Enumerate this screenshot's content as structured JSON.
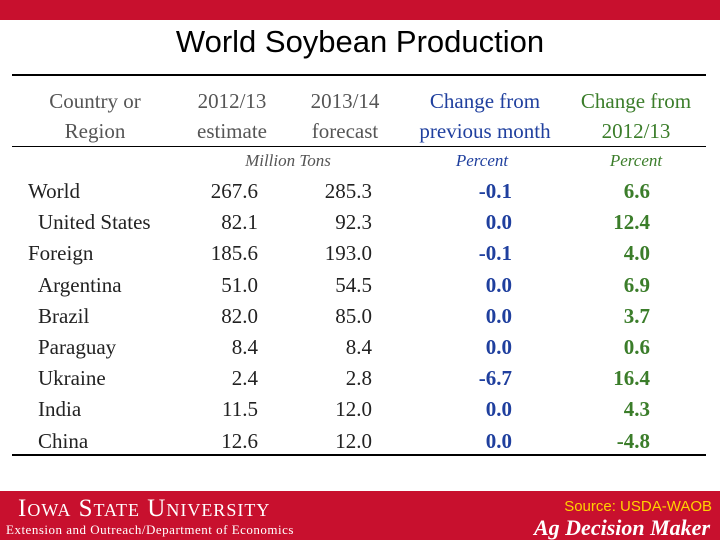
{
  "title": "World Soybean Production",
  "table": {
    "headers": {
      "country": [
        "Country or",
        "Region"
      ],
      "y1": [
        "2012/13",
        "estimate"
      ],
      "y2": [
        "2013/14",
        "forecast"
      ],
      "chg_month": [
        "Change from",
        "previous month"
      ],
      "chg_year": [
        "Change from",
        "2012/13"
      ]
    },
    "units": {
      "tons": "Million Tons",
      "pct_month": "Percent",
      "pct_year": "Percent"
    },
    "rows": [
      {
        "name": "World",
        "indent": false,
        "y1": "267.6",
        "y2": "285.3",
        "chg_month": "-0.1",
        "chg_year": "6.6"
      },
      {
        "name": "United States",
        "indent": true,
        "y1": "82.1",
        "y2": "92.3",
        "chg_month": "0.0",
        "chg_year": "12.4"
      },
      {
        "name": "Foreign",
        "indent": false,
        "y1": "185.6",
        "y2": "193.0",
        "chg_month": "-0.1",
        "chg_year": "4.0"
      },
      {
        "name": "Argentina",
        "indent": true,
        "y1": "51.0",
        "y2": "54.5",
        "chg_month": "0.0",
        "chg_year": "6.9"
      },
      {
        "name": "Brazil",
        "indent": true,
        "y1": "82.0",
        "y2": "85.0",
        "chg_month": "0.0",
        "chg_year": "3.7"
      },
      {
        "name": "Paraguay",
        "indent": true,
        "y1": "8.4",
        "y2": "8.4",
        "chg_month": "0.0",
        "chg_year": "0.6"
      },
      {
        "name": "Ukraine",
        "indent": true,
        "y1": "2.4",
        "y2": "2.8",
        "chg_month": "-6.7",
        "chg_year": "16.4"
      },
      {
        "name": "India",
        "indent": true,
        "y1": "11.5",
        "y2": "12.0",
        "chg_month": "0.0",
        "chg_year": "4.3"
      },
      {
        "name": "China",
        "indent": true,
        "y1": "12.6",
        "y2": "12.0",
        "chg_month": "0.0",
        "chg_year": "-4.8"
      }
    ]
  },
  "footer": {
    "university": "Iowa State University",
    "department": "Extension and Outreach/Department of Economics",
    "source": "Source: USDA-WAOB",
    "brand": "Ag Decision Maker"
  },
  "colors": {
    "isu_red": "#c8102e",
    "month_change": "#1f3f9e",
    "year_change": "#3b7d2a",
    "source_text": "#ffd200"
  }
}
